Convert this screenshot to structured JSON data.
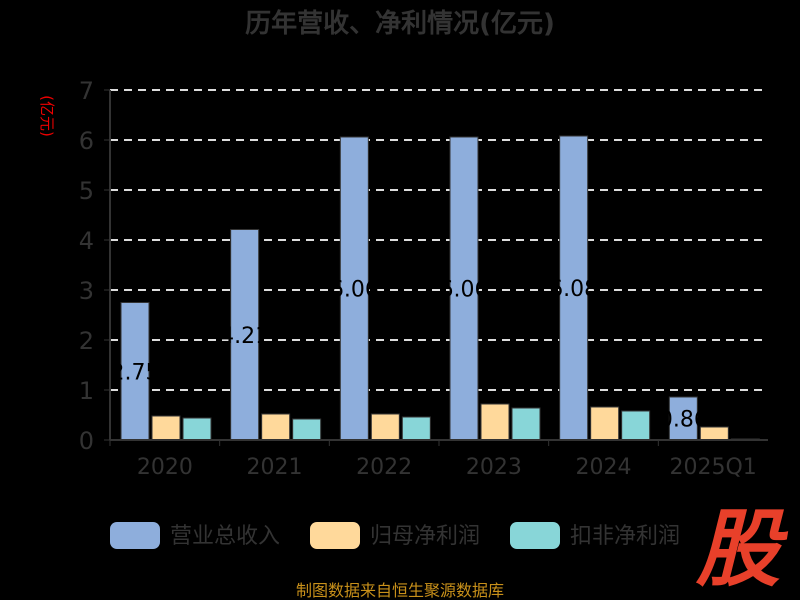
{
  "chart_data": {
    "type": "bar",
    "title": "历年营收、净利情况(亿元)",
    "ylabel": "(亿元)",
    "ylim": [
      0,
      7
    ],
    "yticks": [
      "0",
      "1",
      "2",
      "3",
      "4",
      "5",
      "6",
      "7"
    ],
    "categories": [
      "2020",
      "2021",
      "2022",
      "2023",
      "2024",
      "2025Q1"
    ],
    "series": [
      {
        "name": "营业总收入",
        "color": "#8eaedc",
        "values": [
          2.75,
          4.21,
          6.06,
          6.06,
          6.08,
          0.86
        ],
        "labels": [
          "2.75",
          "4.21",
          "6.06",
          "6.06",
          "6.08",
          "0.86"
        ]
      },
      {
        "name": "归母净利润",
        "color": "#ffd99b",
        "values": [
          0.48,
          0.52,
          0.52,
          0.72,
          0.66,
          0.26
        ]
      },
      {
        "name": "扣非净利润",
        "color": "#88d6d8",
        "values": [
          0.44,
          0.42,
          0.46,
          0.64,
          0.58,
          0.02
        ]
      }
    ],
    "grid": true,
    "legend": "bottom"
  },
  "watermark": "股",
  "source": "制图数据来自恒生聚源数据库"
}
